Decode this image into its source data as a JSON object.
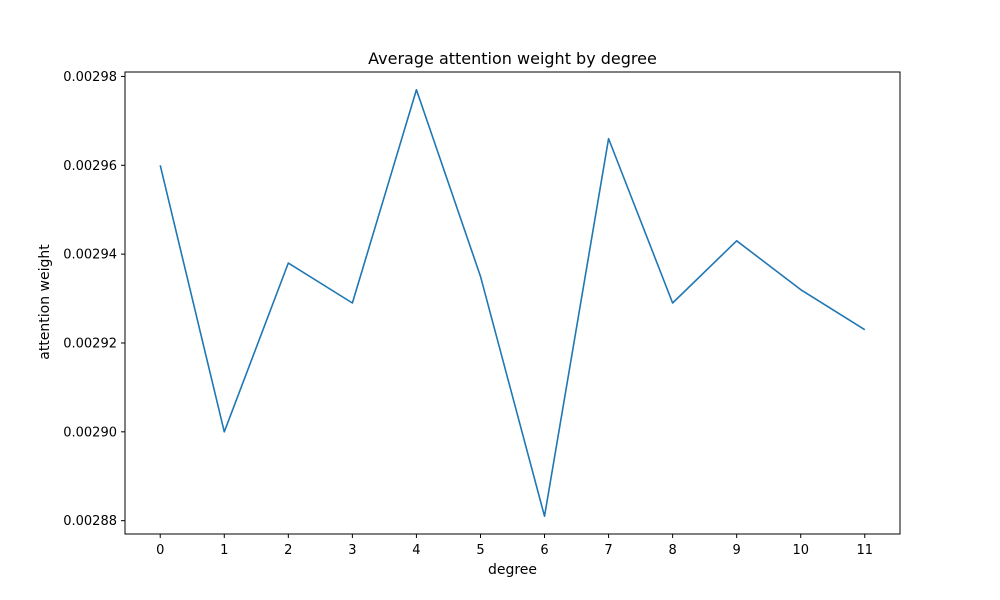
{
  "chart_data": {
    "type": "line",
    "title": "Average attention weight by degree",
    "xlabel": "degree",
    "ylabel": "attention weight",
    "x": [
      0,
      1,
      2,
      3,
      4,
      5,
      6,
      7,
      8,
      9,
      10,
      11
    ],
    "x_tick_labels": [
      "0",
      "1",
      "2",
      "3",
      "4",
      "5",
      "6",
      "7",
      "8",
      "9",
      "10",
      "11"
    ],
    "y_ticks": [
      0.00288,
      0.0029,
      0.00292,
      0.00294,
      0.00296,
      0.00298
    ],
    "y_tick_labels": [
      "0.00288",
      "0.00290",
      "0.00292",
      "0.00294",
      "0.00296",
      "0.00298"
    ],
    "xlim": [
      -0.55,
      11.55
    ],
    "ylim": [
      0.002877,
      0.002981
    ],
    "grid": false,
    "series": [
      {
        "values": [
          0.00296,
          0.0029,
          0.002938,
          0.002929,
          0.002977,
          0.002935,
          0.002881,
          0.002966,
          0.002929,
          0.002943,
          0.002932,
          0.002923
        ],
        "color": "#1f77b4"
      }
    ]
  }
}
